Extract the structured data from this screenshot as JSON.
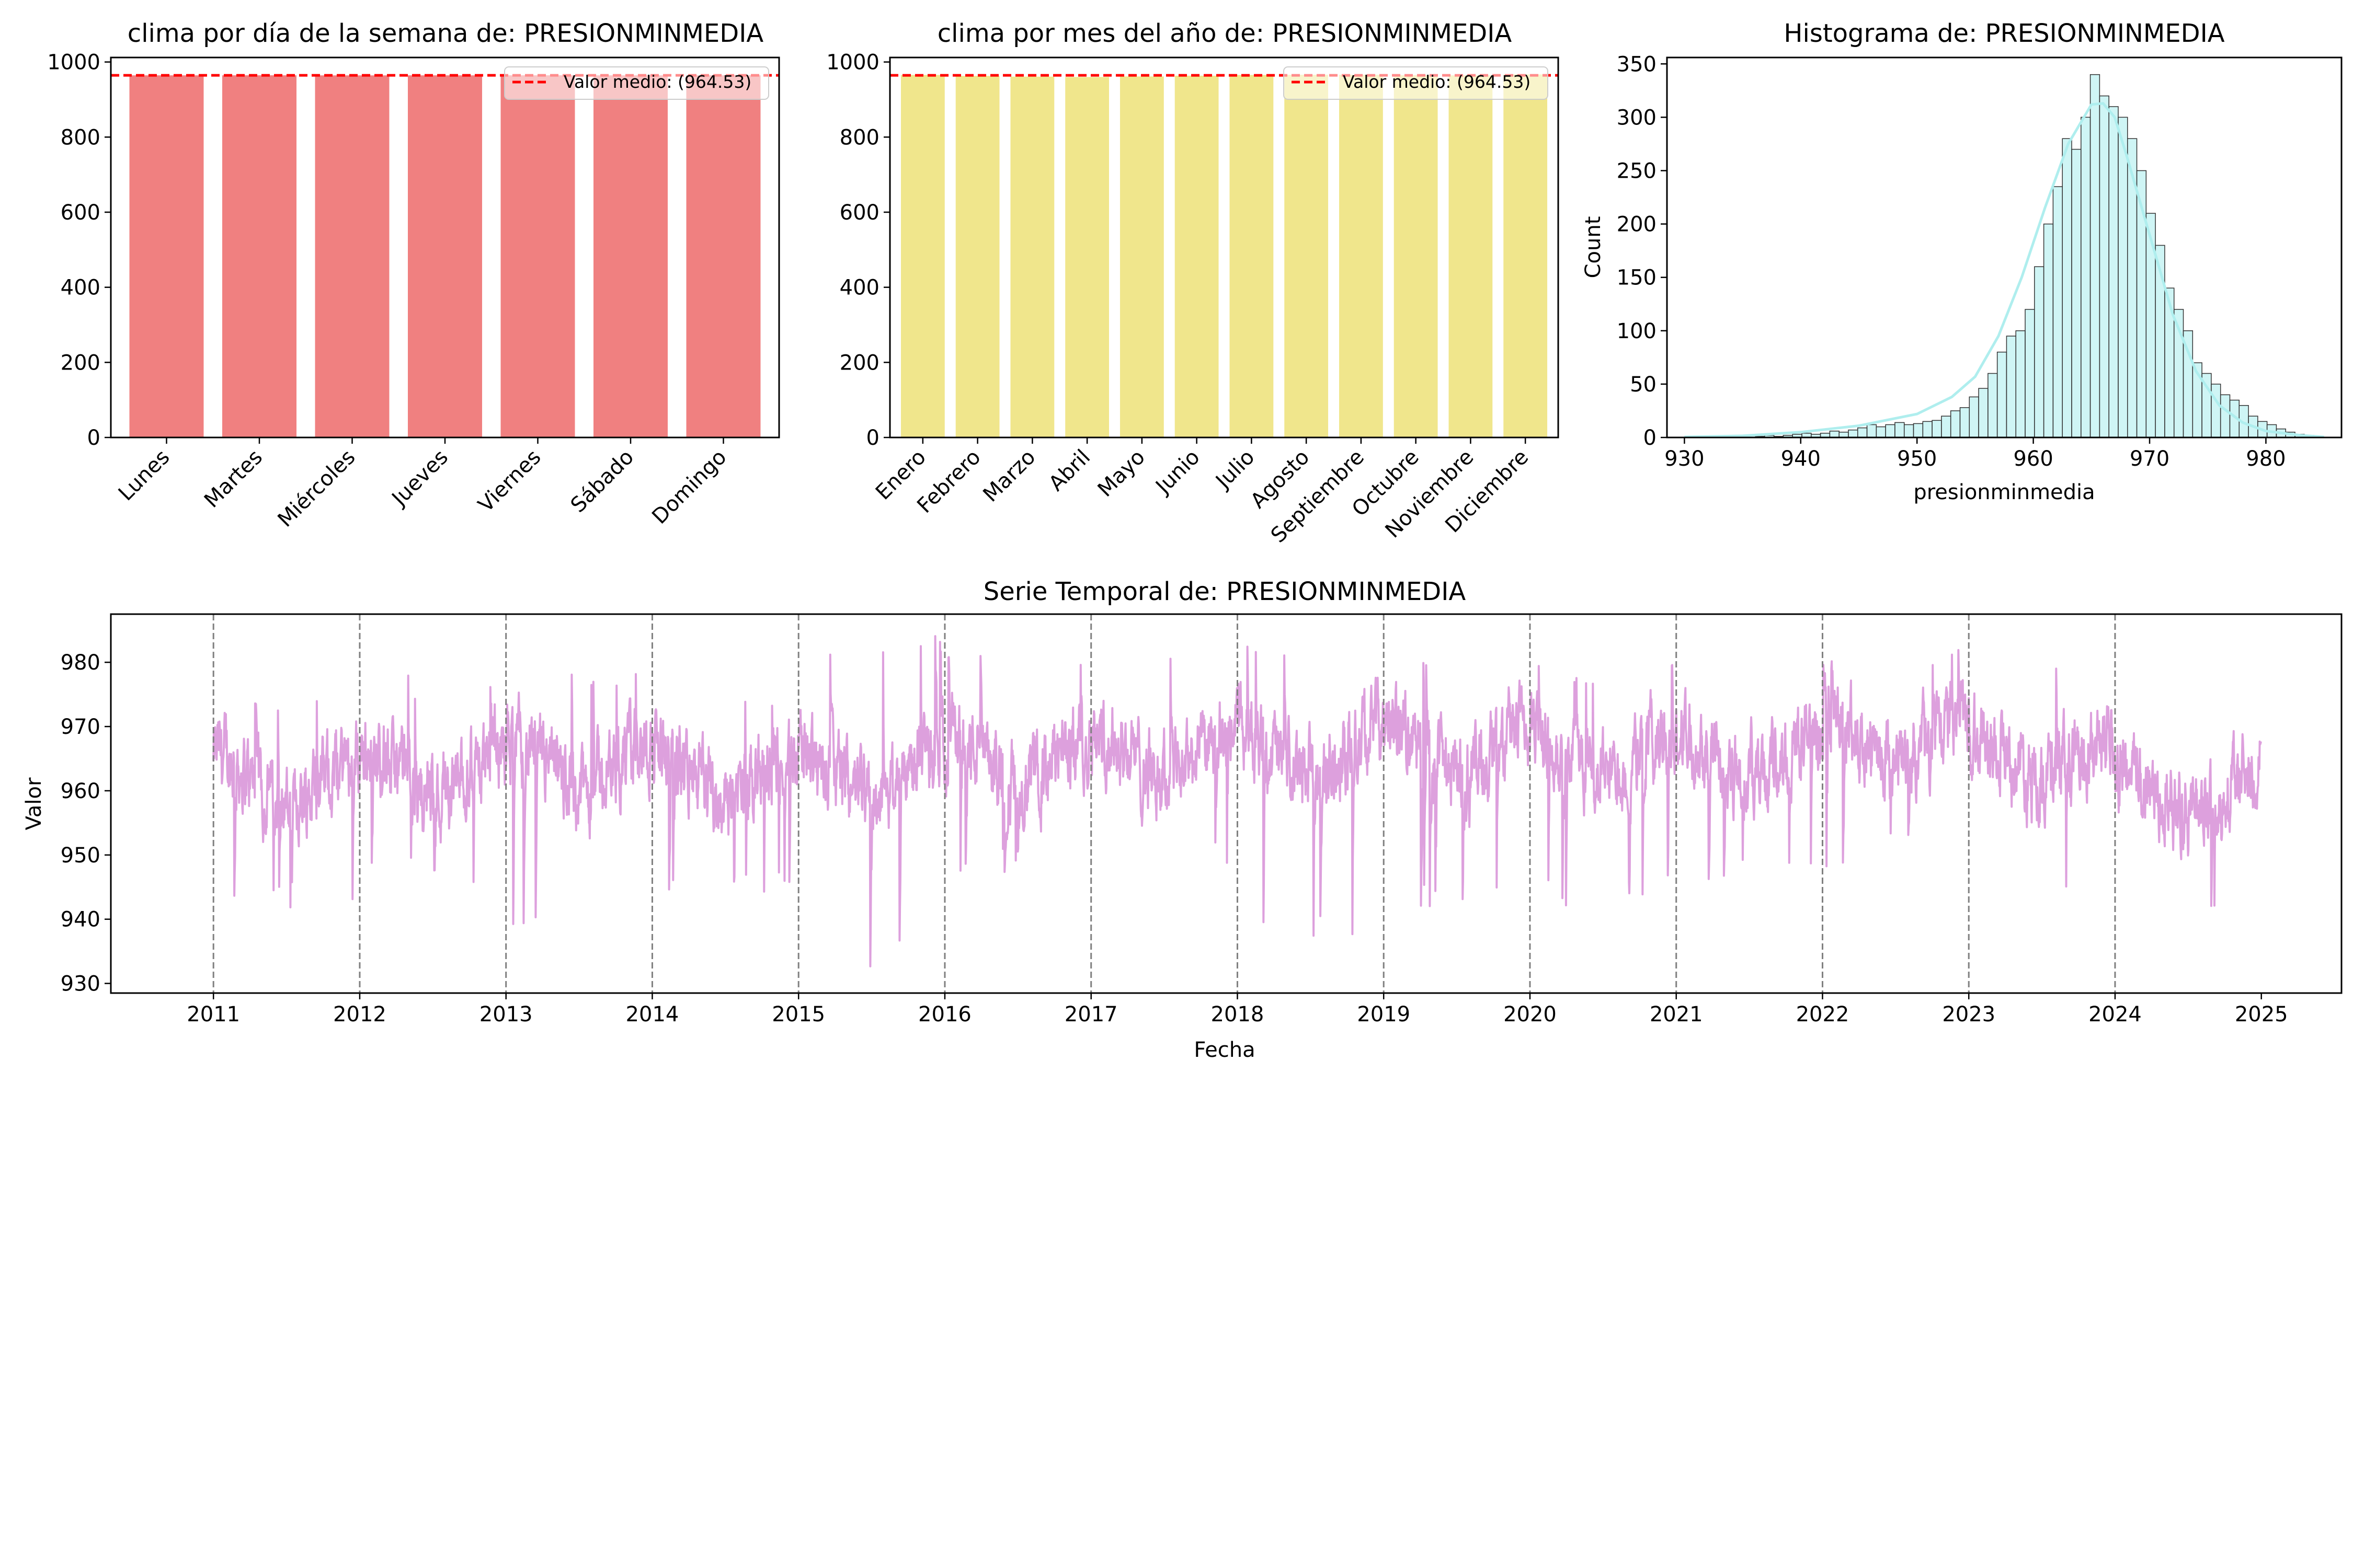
{
  "chart_data": [
    {
      "type": "bar",
      "title": "clima por día de la semana de: PRESIONMINMEDIA",
      "categories": [
        "Lunes",
        "Martes",
        "Miércoles",
        "Jueves",
        "Viernes",
        "Sábado",
        "Domingo"
      ],
      "values": [
        964.5,
        964.6,
        964.4,
        964.5,
        964.6,
        964.5,
        964.6
      ],
      "bar_color": "#f08080",
      "mean_line": {
        "value": 964.53,
        "label": "Valor medio: (964.53)",
        "color": "#ff0000",
        "style": "dashed"
      },
      "legend_position": "top-right",
      "ylim": [
        0,
        1012
      ],
      "yticks": [
        0,
        200,
        400,
        600,
        800,
        1000
      ],
      "xlabel": "",
      "ylabel": ""
    },
    {
      "type": "bar",
      "title": "clima por mes del año de: PRESIONMINMEDIA",
      "categories": [
        "Enero",
        "Febrero",
        "Marzo",
        "Abril",
        "Mayo",
        "Junio",
        "Julio",
        "Agosto",
        "Septiembre",
        "Octubre",
        "Noviembre",
        "Diciembre"
      ],
      "values": [
        965.5,
        963.0,
        961.0,
        960.0,
        961.5,
        963.5,
        965.5,
        966.0,
        966.0,
        965.0,
        964.5,
        967.0
      ],
      "bar_color": "#f0e68c",
      "mean_line": {
        "value": 964.53,
        "label": "Valor medio: (964.53)",
        "color": "#ff0000",
        "style": "dashed"
      },
      "legend_position": "top-right",
      "ylim": [
        0,
        1012
      ],
      "yticks": [
        0,
        200,
        400,
        600,
        800,
        1000
      ],
      "xlabel": "",
      "ylabel": ""
    },
    {
      "type": "bar",
      "title": "Histograma de: PRESIONMINMEDIA",
      "xlabel": "presionminmedia",
      "ylabel": "Count",
      "bin_start": 930.5,
      "bin_width": 0.8,
      "counts": [
        1,
        0,
        0,
        0,
        1,
        1,
        0,
        1,
        2,
        1,
        2,
        3,
        4,
        3,
        4,
        6,
        5,
        7,
        9,
        12,
        10,
        12,
        14,
        12,
        13,
        15,
        16,
        20,
        25,
        28,
        38,
        46,
        60,
        80,
        95,
        100,
        120,
        160,
        200,
        235,
        280,
        270,
        300,
        340,
        320,
        310,
        300,
        280,
        250,
        210,
        180,
        140,
        120,
        100,
        70,
        60,
        50,
        40,
        35,
        30,
        20,
        15,
        12,
        8,
        5,
        3,
        2,
        1
      ],
      "kde": [
        [
          930,
          0.5
        ],
        [
          935,
          1.5
        ],
        [
          940,
          5
        ],
        [
          945,
          11
        ],
        [
          950,
          22
        ],
        [
          953,
          38
        ],
        [
          955,
          57
        ],
        [
          957,
          95
        ],
        [
          959,
          150
        ],
        [
          961,
          215
        ],
        [
          963,
          275
        ],
        [
          965,
          312
        ],
        [
          966,
          313
        ],
        [
          967,
          300
        ],
        [
          968,
          265
        ],
        [
          970,
          190
        ],
        [
          972,
          115
        ],
        [
          974,
          62
        ],
        [
          976,
          30
        ],
        [
          978,
          14
        ],
        [
          980,
          6
        ],
        [
          983,
          2
        ],
        [
          985,
          0.5
        ]
      ],
      "bar_color": "#afeeee",
      "kde_color": "#afeeee",
      "xlim": [
        928.5,
        986.5
      ],
      "ylim": [
        0,
        356
      ],
      "xticks": [
        930,
        940,
        950,
        960,
        970,
        980
      ],
      "yticks": [
        0,
        50,
        100,
        150,
        200,
        250,
        300,
        350
      ]
    },
    {
      "type": "line",
      "title": "Serie Temporal de: PRESIONMINMEDIA",
      "xlabel": "Fecha",
      "ylabel": "Valor",
      "line_color": "#dda0dd",
      "x_start": "2011-01-01",
      "x_end": "2024-12-31",
      "points_per_year": 365,
      "xlim": [
        "2010-04-20",
        "2025-07-20"
      ],
      "ylim": [
        928.5,
        987.5
      ],
      "yticks": [
        930,
        940,
        950,
        960,
        970,
        980
      ],
      "xticks": [
        "2011",
        "2012",
        "2013",
        "2014",
        "2015",
        "2016",
        "2017",
        "2018",
        "2019",
        "2020",
        "2021",
        "2022",
        "2023",
        "2024",
        "2025"
      ],
      "year_divider_lines": [
        "2011",
        "2012",
        "2013",
        "2014",
        "2015",
        "2016",
        "2017",
        "2018",
        "2019",
        "2020",
        "2021",
        "2022",
        "2023",
        "2024"
      ],
      "yearly_mean": [
        962,
        963,
        964,
        963,
        963,
        965,
        966,
        966,
        966,
        966,
        966,
        968,
        966,
        960
      ],
      "yearly_min": [
        940,
        945,
        935,
        943,
        931,
        946,
        947,
        937,
        941,
        942,
        945,
        948,
        941,
        938
      ],
      "yearly_max": [
        974,
        978,
        979,
        976,
        985,
        982,
        984,
        984,
        980,
        980,
        977,
        982,
        982,
        977
      ]
    }
  ]
}
